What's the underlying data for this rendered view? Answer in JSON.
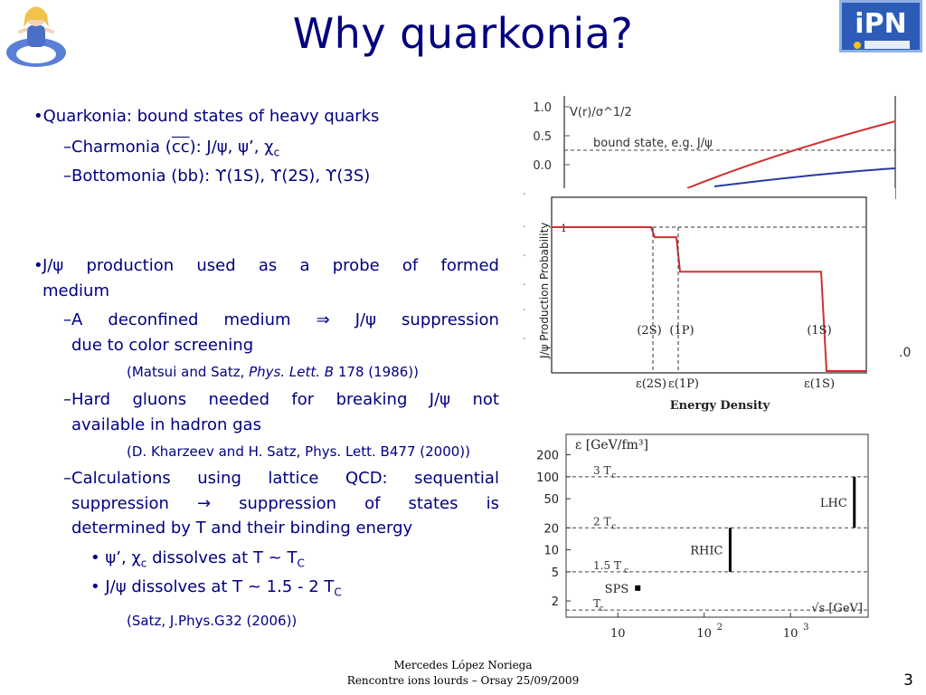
{
  "slide": {
    "title": "Why quarkonia?",
    "number": "3"
  },
  "bullets": {
    "b1": "Quarkonia: bound states of heavy quarks",
    "b1_charm_prefix": "–Charmonia (",
    "b1_charm_cc": "cc",
    "b1_charm_rest": "): J/ψ, ψ’, χ",
    "b1_charm_sub": "c",
    "b1_bottom": "–Bottomonia (bb): ϒ(1S), ϒ(2S), ϒ(3S)",
    "b2_words": [
      "J/ψ",
      "production",
      "used",
      "as",
      "a",
      "probe",
      "of",
      "formed"
    ],
    "b2_cont": "medium",
    "s1_words": [
      "–A",
      "deconfined",
      "medium",
      "⇒",
      "J/ψ",
      "suppression"
    ],
    "s1_cont": "due to color screening",
    "ref1_a": "(Matsui and Satz, ",
    "ref1_journal": "Phys. Lett. B",
    "ref1_b": " 178 (1986))",
    "s2_words": [
      "–Hard",
      "gluons",
      "needed",
      "for",
      "breaking",
      "J/ψ",
      "not"
    ],
    "s2_cont": "available in hadron gas",
    "ref2": "(D. Kharzeev and H. Satz, Phys. Lett. B477 (2000))",
    "s3_words": [
      "–Calculations",
      "using",
      "lattice",
      "QCD:",
      "sequential"
    ],
    "s3_l2_words": [
      "suppression",
      "→",
      "suppression",
      "of",
      "states",
      "is"
    ],
    "s3_l3": "determined by T and their binding energy",
    "ss1_a": "ψ’, χ",
    "ss1_sub1": "c",
    "ss1_b": " dissolves at T ~ T",
    "ss1_sub2": "C",
    "ss2_a": "J/ψ dissolves at T ~ 1.5 - 2 T",
    "ss2_sub": "C",
    "ref3": "(Satz, J.Phys.G32 (2006))"
  },
  "footer": {
    "author": "Mercedes López Noriega",
    "event": "Rencontre ions lourds – Orsay 25/09/2009"
  },
  "chart_data": [
    {
      "type": "line",
      "title": "V(r)/σ^1/2",
      "y_ticks": [
        "1.0",
        "0.5",
        "0.0"
      ],
      "y_values": [
        1.0,
        0.5,
        0.0
      ],
      "annotation": "bound state, e.g. J/ψ",
      "bound_state_level": 0.25,
      "series_colors": [
        "#d03030",
        "#2a3aa0"
      ],
      "x_tick_partial": ".0"
    },
    {
      "type": "line",
      "ylabel": "J/ψ Production Probability",
      "xlabel": "Energy Density",
      "y_tick": "1",
      "state_labels": [
        "(2S)",
        "(1P)",
        "(1S)"
      ],
      "threshold_labels": [
        "ε(2S)",
        "ε(1P)",
        "ε(1S)"
      ],
      "levels": [
        1.0,
        0.93,
        0.69,
        0.0
      ]
    },
    {
      "type": "scatter",
      "ylabel": "ε [GeV/fm³]",
      "xlabel": "√s [GeV]",
      "y_ticks": [
        200,
        100,
        50,
        20,
        10,
        5,
        2
      ],
      "x_ticks": [
        "10",
        "10",
        "10"
      ],
      "x_tick_exps": [
        "",
        "2",
        "3"
      ],
      "x_tick_values": [
        10,
        100,
        1000
      ],
      "temperature_lines": [
        {
          "label": "3 T",
          "sub": "c",
          "value": 100
        },
        {
          "label": "2 T",
          "sub": "c",
          "value": 20
        },
        {
          "label": "1.5 T",
          "sub": "c",
          "value": 5
        },
        {
          "label": "T",
          "sub": "c",
          "value": 1.5
        }
      ],
      "experiments": [
        {
          "name": "SPS",
          "sqrt_s": 17,
          "eps_low": 3,
          "eps_high": 3
        },
        {
          "name": "RHIC",
          "sqrt_s": 200,
          "eps_low": 5,
          "eps_high": 20
        },
        {
          "name": "LHC",
          "sqrt_s": 5500,
          "eps_low": 20,
          "eps_high": 100
        }
      ]
    }
  ]
}
